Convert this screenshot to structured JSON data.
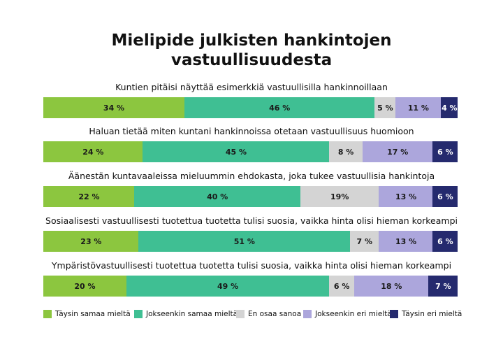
{
  "title_line1": "Mielipide julkisten hankintojen",
  "title_line2": "vastuullisuudesta",
  "colors": {
    "taysin_samaa": "#8cc63f",
    "jokseenkin_samaa": "#3fbf93",
    "en_osaa": "#d4d4d4",
    "jokseenkin_eri": "#aca6dc",
    "taysin_eri": "#252a6e"
  },
  "chart_data": {
    "type": "bar",
    "orientation": "horizontal-stacked-100",
    "categories": [
      "Kuntien pitäisi näyttää esimerkkiä vastuullisilla hankinnoillaan",
      "Haluan tietää miten kuntani hankinnoissa otetaan vastuullisuus huomioon",
      "Äänestän kuntavaaleissa mieluummin ehdokasta, joka tukee vastuullisia hankintoja",
      "Sosiaalisesti vastuullisesti tuotettua tuotetta tulisi suosia, vaikka hinta olisi hieman korkeampi",
      "Ympäristövastuullisesti tuotettua tuotetta tulisi suosia, vaikka hinta olisi hieman korkeampi"
    ],
    "series": [
      {
        "name": "Täysin samaa mieltä",
        "values": [
          34,
          24,
          22,
          23,
          20
        ],
        "labels": [
          "34 %",
          "24 %",
          "22 %",
          "23 %",
          "20 %"
        ]
      },
      {
        "name": "Jokseenkin samaa mieltä",
        "values": [
          46,
          45,
          40,
          51,
          49
        ],
        "labels": [
          "46 %",
          "45 %",
          "40 %",
          "51 %",
          "49 %"
        ]
      },
      {
        "name": "En osaa sanoa",
        "values": [
          5,
          8,
          19,
          7,
          6
        ],
        "labels": [
          "5 %",
          "8 %",
          "19%",
          "7 %",
          "6 %"
        ]
      },
      {
        "name": "Jokseenkin eri mieltä",
        "values": [
          11,
          17,
          13,
          13,
          18
        ],
        "labels": [
          "11 %",
          "17 %",
          "13 %",
          "13 %",
          "18 %"
        ]
      },
      {
        "name": "Täysin eri mieltä",
        "values": [
          4,
          6,
          6,
          6,
          7
        ],
        "labels": [
          "4 %",
          "6 %",
          "6 %",
          "6 %",
          "7 %"
        ]
      }
    ],
    "legend_position": "bottom"
  }
}
